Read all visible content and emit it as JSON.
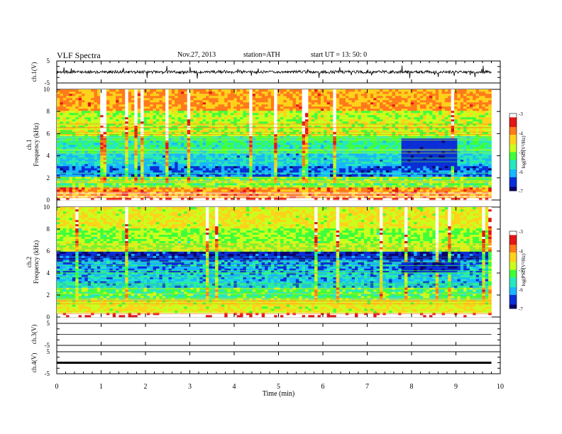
{
  "header": {
    "title": "VLF  Spectra",
    "date": "Nov.27, 2013",
    "station": "station=ATH",
    "start": "start  UT  =    13: 50: 0"
  },
  "colors": {
    "colormap": [
      "#0b006b",
      "#0a2fd6",
      "#19b7ff",
      "#25e8c0",
      "#3fff3a",
      "#c9ff1d",
      "#ffd21b",
      "#ff7a1a",
      "#e21717",
      "#ffffff"
    ]
  },
  "chart_data": [
    {
      "type": "line",
      "id": "ch1",
      "ylabel": "ch.1(V)",
      "ylim": [
        -5,
        5
      ],
      "yticks": [
        "5",
        "-5"
      ],
      "xlim": [
        0,
        10
      ],
      "series": [
        {
          "values": "broadband noise, baseline ~0 V, spikes up to about ±3 V"
        }
      ]
    },
    {
      "type": "heatmap",
      "id": "ch1-spectrogram",
      "ylabel": "ch.1\nFrequency  (kHz)",
      "ylim": [
        0,
        10
      ],
      "yticks": [
        "0",
        "2",
        "4",
        "6",
        "8",
        "10"
      ],
      "xlim": [
        0,
        9.8
      ],
      "colorbar": {
        "label": "log(PSD(V²/Hz)",
        "range": [
          -7,
          -3
        ],
        "ticks": [
          "-3",
          "-4",
          "-5",
          "-6",
          "-7"
        ]
      },
      "bands": [
        {
          "f": [
            0.0,
            0.2
          ],
          "value": -3.1
        },
        {
          "f": [
            0.2,
            1.2
          ],
          "value": -4.0
        },
        {
          "f": [
            1.2,
            2.2
          ],
          "value": -5.2
        },
        {
          "f": [
            2.2,
            3.0
          ],
          "value": -6.4
        },
        {
          "f": [
            3.0,
            4.2
          ],
          "value": -5.9
        },
        {
          "f": [
            4.2,
            5.8
          ],
          "value": -5.5
        },
        {
          "f": [
            5.8,
            8.0
          ],
          "value": -4.8
        },
        {
          "f": [
            8.0,
            10.0
          ],
          "value": -4.1
        }
      ],
      "quiet_patch": {
        "t": [
          7.8,
          9.0
        ],
        "f": [
          3.0,
          5.5
        ],
        "value": -6.8
      }
    },
    {
      "type": "heatmap",
      "id": "ch2-spectrogram",
      "ylabel": "ch.2\nFrequency  (kHz)",
      "ylim": [
        0,
        10
      ],
      "yticks": [
        "0",
        "2",
        "4",
        "6",
        "8",
        "10"
      ],
      "xlim": [
        0,
        9.8
      ],
      "colorbar": {
        "label": "log(PSD(V²/Hz)",
        "range": [
          -7,
          -3
        ],
        "ticks": [
          "-3",
          "-4",
          "-5",
          "-6",
          "-7"
        ]
      },
      "bands": [
        {
          "f": [
            0.0,
            0.3
          ],
          "value": -3.0
        },
        {
          "f": [
            0.3,
            1.5
          ],
          "value": -4.6
        },
        {
          "f": [
            1.5,
            2.6
          ],
          "value": -5.3
        },
        {
          "f": [
            2.6,
            4.0
          ],
          "value": -6.0
        },
        {
          "f": [
            4.0,
            5.2
          ],
          "value": -6.2
        },
        {
          "f": [
            5.2,
            6.0
          ],
          "value": -6.7
        },
        {
          "f": [
            6.0,
            8.0
          ],
          "value": -5.0
        },
        {
          "f": [
            8.0,
            10.0
          ],
          "value": -4.6
        }
      ],
      "quiet_patch": {
        "t": [
          7.8,
          9.0
        ],
        "f": [
          4.0,
          5.0
        ],
        "value": -6.9
      }
    },
    {
      "type": "line",
      "id": "ch3",
      "ylabel": "ch.3(V)",
      "ylim": [
        -5,
        5
      ],
      "yticks": [
        "5",
        "-5"
      ],
      "xlim": [
        0,
        10
      ],
      "series": [
        {
          "values": "flat, about 0 V"
        }
      ]
    },
    {
      "type": "line",
      "id": "ch4",
      "ylabel": "ch.4(V)",
      "ylim": [
        -5,
        5
      ],
      "yticks": [
        "5",
        "-5"
      ],
      "xlim": [
        0,
        10
      ],
      "series": [
        {
          "values": "flat, about 0 V"
        }
      ]
    }
  ],
  "xaxis": {
    "label": "Time  (min)",
    "ticks": [
      "0",
      "1",
      "2",
      "3",
      "4",
      "5",
      "6",
      "7",
      "8",
      "9",
      "10"
    ]
  }
}
